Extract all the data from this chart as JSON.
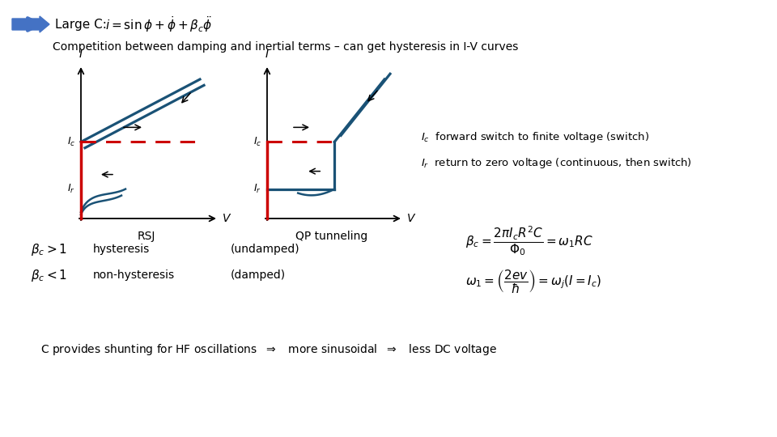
{
  "bg_color": "#ffffff",
  "title_text": "Competition between damping and inertial terms – can get hysteresis in I-V curves",
  "arrow_color": "#4472c4",
  "header_formula": "$i = \\sin\\phi + \\dot{\\phi} + \\beta_c\\ddot{\\phi}$",
  "header_label": "Large C:  ",
  "rsj_label": "RSJ",
  "qp_label": "QP tunneling",
  "red_color": "#cc0000",
  "blue_color": "#1a5276",
  "dashed_red": "#cc0000"
}
